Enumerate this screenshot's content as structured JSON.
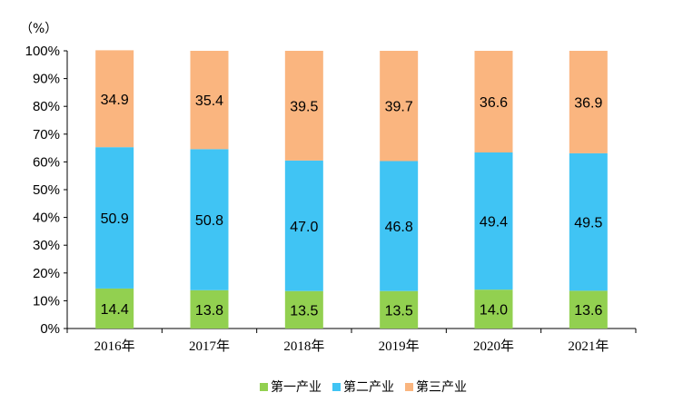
{
  "chart_data": {
    "type": "bar",
    "stacked": true,
    "title": "",
    "unit_label": "（%）",
    "xlabel": "",
    "ylabel": "",
    "ylim": [
      0,
      100
    ],
    "yticks": [
      "0%",
      "10%",
      "20%",
      "30%",
      "40%",
      "50%",
      "60%",
      "70%",
      "80%",
      "90%",
      "100%"
    ],
    "categories": [
      "2016年",
      "2017年",
      "2018年",
      "2019年",
      "2020年",
      "2021年"
    ],
    "series": [
      {
        "name": "第一产业",
        "color": "#92D050",
        "values": [
          14.4,
          13.8,
          13.5,
          13.5,
          14.0,
          13.6
        ],
        "labels": [
          "14.4",
          "13.8",
          "13.5",
          "13.5",
          "14.0",
          "13.6"
        ]
      },
      {
        "name": "第二产业",
        "color": "#40C4F4",
        "values": [
          50.9,
          50.8,
          47.0,
          46.8,
          49.4,
          49.5
        ],
        "labels": [
          "50.9",
          "50.8",
          "47.0",
          "46.8",
          "49.4",
          "49.5"
        ]
      },
      {
        "name": "第三产业",
        "color": "#FAB57F",
        "values": [
          34.9,
          35.4,
          39.5,
          39.7,
          36.6,
          36.9
        ],
        "labels": [
          "34.9",
          "35.4",
          "39.5",
          "39.7",
          "36.6",
          "36.9"
        ]
      }
    ],
    "grid": false,
    "legend_position": "bottom"
  }
}
